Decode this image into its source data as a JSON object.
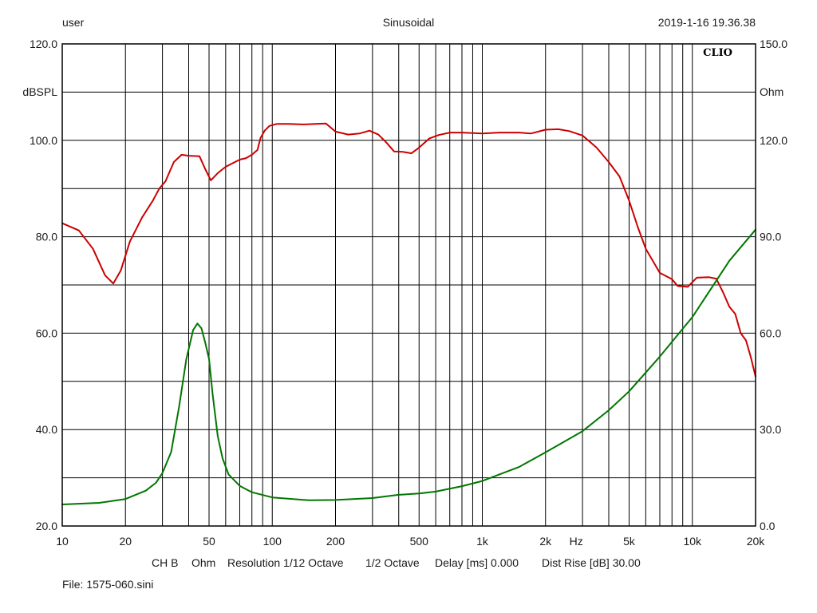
{
  "header": {
    "user": "user",
    "mode": "Sinusoidal",
    "timestamp": "2019-1-16 19.36.38"
  },
  "footer": {
    "channel": "CH B",
    "units": "Ohm",
    "resolution": "Resolution 1/12 Octave",
    "smoothing": "1/2 Octave",
    "delay": "Delay [ms] 0.000",
    "dist_rise": "Dist Rise [dB] 30.00",
    "file": "File: 1575-060.sini"
  },
  "brand": "CLIO",
  "colors": {
    "background": "#ffffff",
    "grid": "#000000",
    "spl_series": "#cc0000",
    "impedance_series": "#007700"
  },
  "chart_data": {
    "type": "line",
    "x_scale": "log",
    "xlim": [
      10,
      20000
    ],
    "x_ticks": [
      {
        "value": 10,
        "label": "10"
      },
      {
        "value": 20,
        "label": "20"
      },
      {
        "value": 50,
        "label": "50"
      },
      {
        "value": 100,
        "label": "100"
      },
      {
        "value": 200,
        "label": "200"
      },
      {
        "value": 500,
        "label": "500"
      },
      {
        "value": 1000,
        "label": "1k"
      },
      {
        "value": 2000,
        "label": "2k"
      },
      {
        "value": 5000,
        "label": "5k"
      },
      {
        "value": 10000,
        "label": "10k"
      },
      {
        "value": 20000,
        "label": "20k"
      }
    ],
    "x_unit_label": "Hz",
    "x_unit_anchor": 2800,
    "x_grid": [
      10,
      20,
      30,
      40,
      50,
      60,
      70,
      80,
      90,
      100,
      200,
      300,
      400,
      500,
      600,
      700,
      800,
      900,
      1000,
      2000,
      3000,
      4000,
      5000,
      6000,
      7000,
      8000,
      9000,
      10000,
      20000
    ],
    "y_left": {
      "label": "dBSPL",
      "lim": [
        20,
        120
      ],
      "ticks": [
        {
          "value": 20,
          "label": "20.0"
        },
        {
          "value": 40,
          "label": "40.0"
        },
        {
          "value": 60,
          "label": "60.0"
        },
        {
          "value": 80,
          "label": "80.0"
        },
        {
          "value": 100,
          "label": "100.0"
        },
        {
          "value": 120,
          "label": "120.0"
        }
      ],
      "grid_step": 10
    },
    "y_right": {
      "label": "Ohm",
      "lim": [
        0,
        150
      ],
      "ticks": [
        {
          "value": 0,
          "label": "0.0"
        },
        {
          "value": 30,
          "label": "30.0"
        },
        {
          "value": 60,
          "label": "60.0"
        },
        {
          "value": 90,
          "label": "90.0"
        },
        {
          "value": 120,
          "label": "120.0"
        },
        {
          "value": 150,
          "label": "150.0"
        }
      ]
    },
    "grid": true,
    "series": [
      {
        "axis": "left",
        "color": "#cc0000",
        "x": [
          10,
          12,
          14,
          16,
          17.5,
          19,
          21,
          24,
          27,
          29,
          31,
          34,
          37,
          40,
          45,
          48,
          51,
          55,
          60,
          65,
          70,
          75,
          80,
          85,
          88,
          92,
          97,
          105,
          120,
          140,
          160,
          180,
          200,
          230,
          260,
          290,
          320,
          350,
          380,
          420,
          460,
          500,
          560,
          620,
          700,
          800,
          1000,
          1200,
          1500,
          1700,
          2000,
          2300,
          2600,
          3000,
          3500,
          4000,
          4500,
          5000,
          5500,
          6000,
          7000,
          8000,
          8500,
          9500,
          10500,
          12000,
          13000,
          14000,
          15000,
          16000,
          17000,
          18000,
          19000,
          20000
        ],
        "values": [
          82.8,
          81.3,
          77.5,
          72,
          70.3,
          73,
          79,
          84,
          87.5,
          90,
          91.5,
          95.5,
          97,
          96.8,
          96.7,
          94,
          91.7,
          93.2,
          94.5,
          95.3,
          96,
          96.3,
          97,
          98,
          100.5,
          102,
          103,
          103.4,
          103.4,
          103.3,
          103.4,
          103.5,
          101.8,
          101.2,
          101.4,
          102,
          101.2,
          99.5,
          97.7,
          97.6,
          97.3,
          98.5,
          100.4,
          101.1,
          101.6,
          101.6,
          101.4,
          101.6,
          101.6,
          101.4,
          102.2,
          102.3,
          101.9,
          101,
          98.5,
          95.5,
          92.5,
          87.5,
          82,
          77.5,
          72.5,
          71.2,
          69.8,
          69.6,
          71.5,
          71.6,
          71.3,
          68.5,
          65.5,
          64,
          60,
          58.5,
          55,
          51
        ]
      },
      {
        "axis": "right",
        "color": "#007700",
        "x": [
          10,
          15,
          20,
          25,
          28,
          30,
          33,
          36,
          39,
          42,
          44,
          46,
          48,
          50,
          52,
          55,
          58,
          62,
          70,
          80,
          100,
          150,
          200,
          300,
          400,
          500,
          600,
          800,
          1000,
          1500,
          2000,
          3000,
          4000,
          5000,
          7000,
          10000,
          15000,
          20000
        ],
        "values": [
          6.7,
          7.2,
          8.4,
          11,
          13.5,
          16.5,
          23,
          37,
          52,
          61,
          63,
          61.5,
          57,
          52,
          41,
          28,
          21,
          16,
          12.5,
          10.5,
          8.9,
          8,
          8.1,
          8.7,
          9.7,
          10.1,
          10.7,
          12.4,
          14,
          18.4,
          22.9,
          29.5,
          36,
          41.9,
          52.7,
          65,
          82.5,
          92.2
        ]
      }
    ]
  }
}
